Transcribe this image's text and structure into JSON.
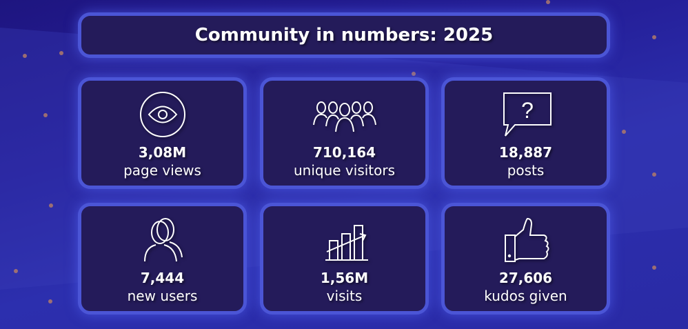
{
  "title": "Community in numbers: 2025",
  "colors": {
    "background": "#2a27a0",
    "card_fill": "#241b5a",
    "card_border": "#4b55d6",
    "dot": "#b07a6a"
  },
  "stats": [
    {
      "icon": "eye-icon",
      "value": "3,08M",
      "label": "page views"
    },
    {
      "icon": "people-group-icon",
      "value": "710,164",
      "label": "unique visitors"
    },
    {
      "icon": "question-speech-bubble-icon",
      "value": "18,887",
      "label": "posts"
    },
    {
      "icon": "users-icon",
      "value": "7,444",
      "label": "new users"
    },
    {
      "icon": "bar-chart-growth-icon",
      "value": "1,56M",
      "label": "visits"
    },
    {
      "icon": "thumbs-up-icon",
      "value": "27,606",
      "label": "kudos given"
    }
  ]
}
